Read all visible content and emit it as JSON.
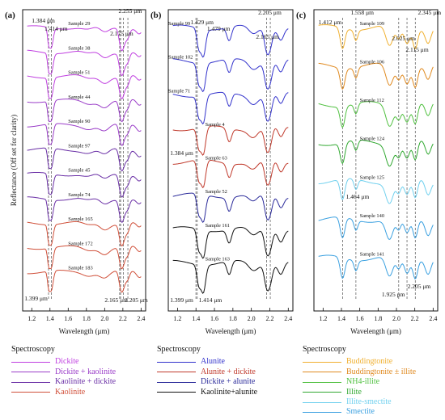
{
  "chart_data": [
    {
      "type": "line",
      "panel_label": "(a)",
      "xlabel": "Wavelength (μm)",
      "ylabel": "Reflectance (Off set for clarity)",
      "xlim": [
        1.1,
        2.45
      ],
      "x_ticks": [
        "1.2",
        "1.4",
        "1.6",
        "1.8",
        "2.0",
        "2.2",
        "2.4"
      ],
      "annotations": [
        "1.384 μm",
        "1.414 μm",
        "2.175 μm",
        "2.255 μm",
        "1.399 μm",
        "2.165 μm",
        "2.205 μm"
      ],
      "series": [
        {
          "name": "Sample 29",
          "group": "Dickite",
          "color": "#c040e0"
        },
        {
          "name": "Sample 38",
          "group": "Dickite",
          "color": "#c040e0"
        },
        {
          "name": "Sample 51",
          "group": "Dickite",
          "color": "#c040e0"
        },
        {
          "name": "Sample 44",
          "group": "Dickite + kaolinite",
          "color": "#9a3cc8"
        },
        {
          "name": "Sample 90",
          "group": "Dickite + kaolinite",
          "color": "#9a3cc8"
        },
        {
          "name": "Sample 97",
          "group": "Kaolinite + dickite",
          "color": "#6a2fa6"
        },
        {
          "name": "Sample 45",
          "group": "Kaolinite + dickite",
          "color": "#6a2fa6"
        },
        {
          "name": "Sample 74",
          "group": "Kaolinite + dickite",
          "color": "#6a2fa6"
        },
        {
          "name": "Sample 165",
          "group": "Kaolinite",
          "color": "#d0503a"
        },
        {
          "name": "Sample 172",
          "group": "Kaolinite",
          "color": "#d0503a"
        },
        {
          "name": "Sample 183",
          "group": "Kaolinite",
          "color": "#d0503a"
        }
      ],
      "legend_title": "Spectroscopy",
      "legend": [
        {
          "label": "Dickite",
          "color": "#c040e0"
        },
        {
          "label": "Dickite + kaolinite",
          "color": "#9a3cc8"
        },
        {
          "label": "Kaolinite + dickite",
          "color": "#6a2fa6"
        },
        {
          "label": "Kaolinite",
          "color": "#d0503a"
        }
      ]
    },
    {
      "type": "line",
      "panel_label": "(b)",
      "xlabel": "Wavelength (μm)",
      "xlim": [
        1.1,
        2.45
      ],
      "x_ticks": [
        "1.2",
        "1.4",
        "1.6",
        "1.8",
        "2.0",
        "2.2",
        "2.4"
      ],
      "annotations": [
        "1.429 μm",
        "1.479 μm",
        "2.205 μm",
        "2.165 μm",
        "1.384 μm",
        "1.399 μm",
        "1.414 μm"
      ],
      "series": [
        {
          "name": "Sample 99",
          "group": "Alunite",
          "color": "#3333cc"
        },
        {
          "name": "Sample 102",
          "group": "Alunite",
          "color": "#3333cc"
        },
        {
          "name": "Sample 71",
          "group": "Alunite",
          "color": "#3333cc"
        },
        {
          "name": "Sample 4",
          "group": "Alunite + dickite",
          "color": "#c0392b"
        },
        {
          "name": "Sample 63",
          "group": "Alunite + dickite",
          "color": "#c0392b"
        },
        {
          "name": "Sample 52",
          "group": "Dickite + alunite",
          "color": "#2a2a9a"
        },
        {
          "name": "Sample 161",
          "group": "Kaolinite+alunite",
          "color": "#111111"
        },
        {
          "name": "Sample 163",
          "group": "Kaolinite+alunite",
          "color": "#111111"
        }
      ],
      "legend_title": "Spectroscopy",
      "legend": [
        {
          "label": "Alunite",
          "color": "#3333cc"
        },
        {
          "label": "Alunite + dickite",
          "color": "#c0392b"
        },
        {
          "label": "Dickite + alunite",
          "color": "#2a2a9a"
        },
        {
          "label": "Kaolinite+alunite",
          "color": "#111111"
        }
      ]
    },
    {
      "type": "line",
      "panel_label": "(c)",
      "xlabel": "Wavelength (μm)",
      "xlim": [
        1.1,
        2.45
      ],
      "x_ticks": [
        "1.2",
        "1.4",
        "1.6",
        "1.8",
        "2.0",
        "2.2",
        "2.4"
      ],
      "annotations": [
        "1.412 μm",
        "1.558 μm",
        "2.345 μm",
        "2.025 μm",
        "2.115 μm",
        "1.464 μm",
        "1.925 μm",
        "2.205 μm"
      ],
      "series": [
        {
          "name": "Sample 109",
          "group": "Buddingtonite",
          "color": "#f0b030"
        },
        {
          "name": "Sample 106",
          "group": "Buddingtonite ± illite",
          "color": "#e08a20"
        },
        {
          "name": "Sample 112",
          "group": "NH4-illite",
          "color": "#50c040"
        },
        {
          "name": "Sample 124",
          "group": "Illite",
          "color": "#30a830"
        },
        {
          "name": "Sample 125",
          "group": "Illite-smectite",
          "color": "#70d0ee"
        },
        {
          "name": "Sample 140",
          "group": "Smectite",
          "color": "#3aa0e0"
        },
        {
          "name": "Sample 141",
          "group": "Smectite",
          "color": "#3aa0e0"
        }
      ],
      "legend_title": "Spectroscopy",
      "legend": [
        {
          "label": "Buddingtonite",
          "color": "#f0b030"
        },
        {
          "label": "Buddingtonite ± illite",
          "color": "#e08a20"
        },
        {
          "label": "NH4-illite",
          "color": "#50c040"
        },
        {
          "label": "Illite",
          "color": "#30a830"
        },
        {
          "label": "Illite-smectite",
          "color": "#70d0ee"
        },
        {
          "label": "Smectite",
          "color": "#3aa0e0"
        }
      ]
    }
  ]
}
